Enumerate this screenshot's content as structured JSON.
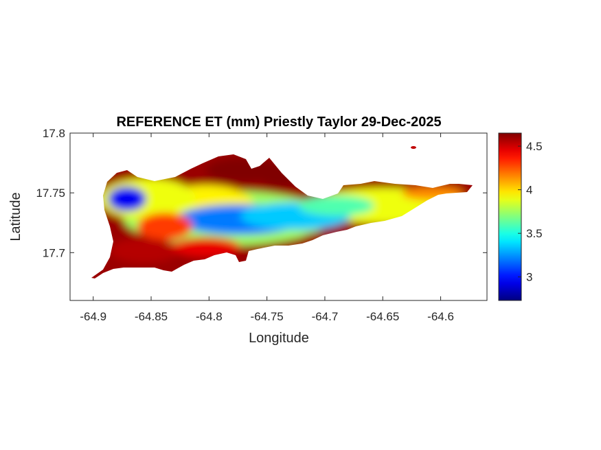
{
  "chart_data": {
    "type": "heatmap",
    "title": "REFERENCE ET (mm) Priestly Taylor 29-Dec-2025",
    "xlabel": "Longitude",
    "ylabel": "Latitude",
    "xlim": [
      -64.92,
      -64.56
    ],
    "ylim": [
      17.66,
      17.8
    ],
    "x_ticks": [
      -64.9,
      -64.85,
      -64.8,
      -64.75,
      -64.7,
      -64.65,
      -64.6
    ],
    "x_tick_labels": [
      "-64.9",
      "-64.85",
      "-64.8",
      "-64.75",
      "-64.7",
      "-64.65",
      "-64.6"
    ],
    "y_ticks": [
      17.7,
      17.75,
      17.8
    ],
    "y_tick_labels": [
      "17.7",
      "17.75",
      "17.8"
    ],
    "colormap": "jet",
    "clim": [
      2.73,
      4.65
    ],
    "colorbar_ticks": [
      3,
      3.5,
      4,
      4.5
    ],
    "colorbar_tick_labels": [
      "3",
      "3.5",
      "4",
      "4.5"
    ],
    "field_summary": {
      "background_value": 4.6,
      "low_band_center_value": 3.2,
      "west_pocket_value": 2.95,
      "east_band_value": 3.6
    },
    "grid": false,
    "box": true
  }
}
